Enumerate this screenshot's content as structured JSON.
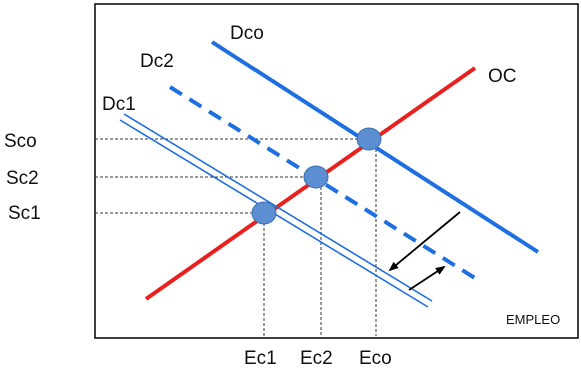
{
  "diagram": {
    "curves": {
      "dco": "Dco",
      "dc2": "Dc2",
      "dc1": "Dc1",
      "oc": "OC"
    },
    "y_labels": {
      "sco": "Sco",
      "sc2": "Sc2",
      "sc1": "Sc1"
    },
    "x_labels": {
      "ec1": "Ec1",
      "ec2": "Ec2",
      "eco": "Eco"
    },
    "x_axis_label": "EMPLEO",
    "colors": {
      "blue": "#1E6FE0",
      "red": "#E8201E",
      "point_fill": "#5B8FD1",
      "point_stroke": "#3A6FB0",
      "axis": "#000000",
      "guide": "#333333"
    }
  }
}
